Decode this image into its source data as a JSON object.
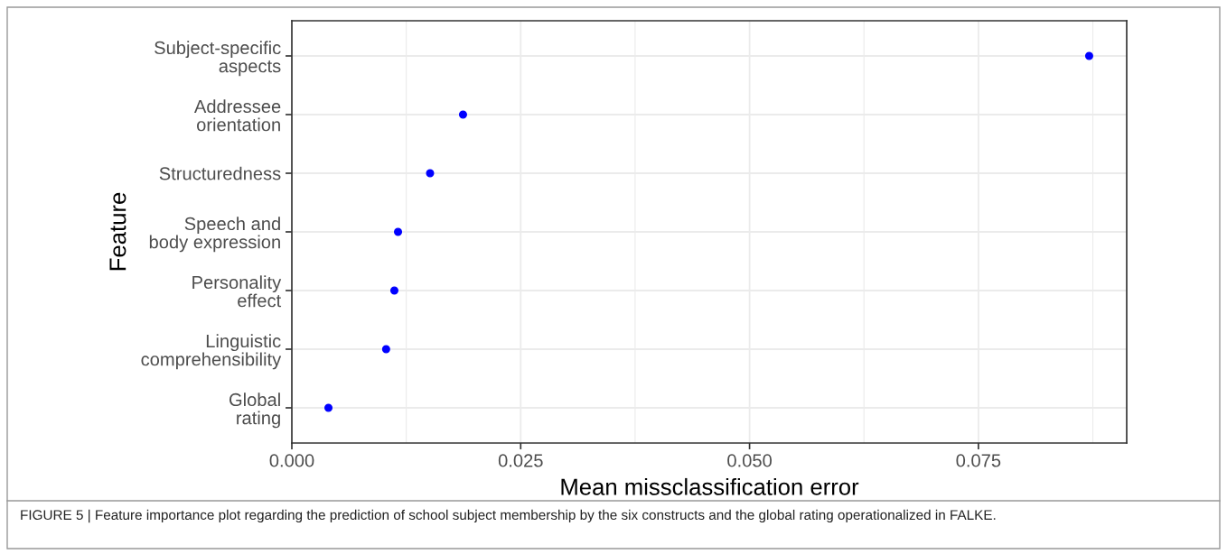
{
  "chart_data": {
    "type": "scatter",
    "orientation": "horizontal",
    "categories": [
      "Subject-specific\naspects",
      "Addressee\norientation",
      "Structuredness",
      "Speech and\nbody expression",
      "Personality\neffect",
      "Linguistic\ncomprehensibility",
      "Global\nrating"
    ],
    "values": [
      0.0871,
      0.0187,
      0.0151,
      0.0116,
      0.0112,
      0.0103,
      0.004
    ],
    "color": "#0000ff",
    "marker": "circle",
    "xlim": [
      0,
      0.0912
    ],
    "xticks": [
      {
        "value": 0,
        "label": "0.000"
      },
      {
        "value": 0.025,
        "label": "0.025"
      },
      {
        "value": 0.05,
        "label": "0.050"
      },
      {
        "value": 0.075,
        "label": "0.075"
      }
    ],
    "xlabel": "Mean missclassification error",
    "ylabel": "Feature",
    "grid": true,
    "annotations": [
      "FIGURE 5 | Feature importance plot regarding the prediction of school subject membership by the six constructs and the global rating operationalized in FALKE."
    ]
  }
}
